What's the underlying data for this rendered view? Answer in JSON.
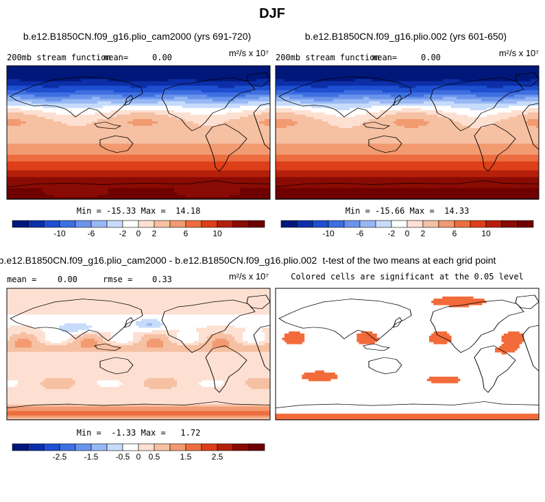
{
  "page_title": "DJF",
  "panels": [
    {
      "title": "b.e12.B1850CN.f09_g16.plio_cam2000 (yrs 691-720)",
      "left_label": "200mb stream function",
      "mean_label": "mean=",
      "mean_value": "0.00",
      "units": "m²/s x 10⁷",
      "stats": "Min = -15.33 Max =  14.18"
    },
    {
      "title": "b.e12.B1850CN.f09_g16.plio.002 (yrs 601-650)",
      "left_label": "200mb stream function",
      "mean_label": "mean=",
      "mean_value": "0.00",
      "units": "m²/s x 10⁷",
      "stats": "Min = -15.66 Max =  14.33"
    },
    {
      "title": "b.e12.B1850CN.f09_g16.plio_cam2000 - b.e12.B1850CN.f09_g16.plio.002",
      "mean_label": "mean =",
      "mean_value": "0.00",
      "rmse_label": "rmse =",
      "rmse_value": "0.33",
      "units": "m²/s x 10⁷",
      "stats": "Min =  -1.33 Max =   1.72"
    },
    {
      "title": "t-test of the two means at each grid point",
      "subtitle": "Colored cells are significant at the 0.05 level"
    }
  ],
  "chart_data": [
    {
      "type": "heatmap",
      "name": "plio_cam2000 DJF 200mb stream function",
      "colorbar_ticks": [
        "-10",
        "-6",
        "-2",
        "0",
        "2",
        "6",
        "10"
      ],
      "colorbar_levels": [
        -14,
        -12,
        -10,
        -8,
        -6,
        -4,
        -2,
        0,
        2,
        4,
        6,
        8,
        10,
        12,
        14
      ],
      "min": -15.33,
      "max": 14.18,
      "mean": 0.0,
      "zonal_profile": {
        "lat": [
          90,
          70,
          55,
          45,
          35,
          25,
          15,
          5,
          -5,
          -15,
          -25,
          -35,
          -45,
          -55,
          -65,
          -75,
          -90
        ],
        "value": [
          -15,
          -14,
          -10,
          -6,
          -2,
          1,
          3,
          3,
          3,
          4,
          5,
          7,
          9,
          11,
          13,
          14,
          14
        ]
      }
    },
    {
      "type": "heatmap",
      "name": "plio.002 DJF 200mb stream function",
      "colorbar_ticks": [
        "-10",
        "-6",
        "-2",
        "0",
        "2",
        "6",
        "10"
      ],
      "colorbar_levels": [
        -14,
        -12,
        -10,
        -8,
        -6,
        -4,
        -2,
        0,
        2,
        4,
        6,
        8,
        10,
        12,
        14
      ],
      "min": -15.66,
      "max": 14.33,
      "mean": 0.0,
      "zonal_profile": {
        "lat": [
          90,
          70,
          55,
          45,
          35,
          25,
          15,
          5,
          -5,
          -15,
          -25,
          -35,
          -45,
          -55,
          -65,
          -75,
          -90
        ],
        "value": [
          -15.5,
          -14,
          -10,
          -6,
          -2,
          1,
          3,
          3,
          3,
          4,
          5,
          7,
          9,
          11,
          13,
          14,
          14.3
        ]
      }
    },
    {
      "type": "heatmap",
      "name": "difference",
      "colorbar_ticks": [
        "-2.5",
        "-1.5",
        "-0.5",
        "0",
        "0.5",
        "1.5",
        "2.5"
      ],
      "colorbar_levels": [
        -3,
        -2.5,
        -2,
        -1.5,
        -1,
        -0.5,
        -0.25,
        0,
        0.25,
        0.5,
        1,
        1.5,
        2,
        2.5,
        3
      ],
      "min": -1.33,
      "max": 1.72,
      "mean": 0.0,
      "rmse": 0.33
    },
    {
      "type": "heatmap",
      "name": "t-test significance",
      "significance_level": 0.05
    }
  ],
  "palette": [
    "#00177a",
    "#0c2fa8",
    "#1f4fd1",
    "#3d6fe0",
    "#6a94ec",
    "#97b8f4",
    "#c7dbfb",
    "#ffffff",
    "#fde0d2",
    "#f6c0a2",
    "#f29a70",
    "#ec6d3f",
    "#dd3f1a",
    "#b5200b",
    "#8a0b03",
    "#6e0000"
  ],
  "colors": {
    "significant": "#f26b3a",
    "land_outline": "#000000"
  }
}
